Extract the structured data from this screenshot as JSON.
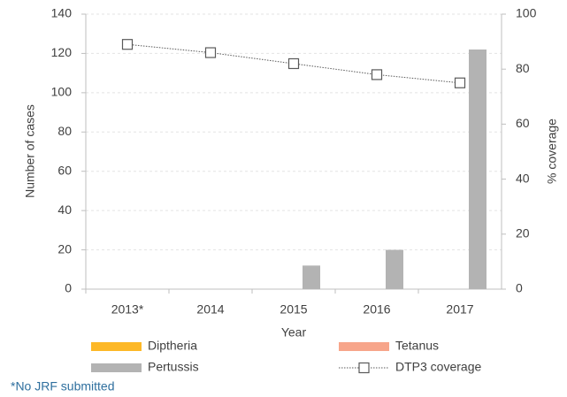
{
  "chart_data": {
    "type": "bar",
    "x_label": "Year",
    "y_label": "Number of cases",
    "y2_label": "% coverage",
    "categories": [
      "2013*",
      "2014",
      "2015",
      "2016",
      "2017"
    ],
    "series": [
      {
        "name": "Diptheria",
        "color": "#fdb827",
        "values": [
          0,
          0,
          0,
          0,
          0
        ]
      },
      {
        "name": "Tetanus",
        "color": "#f7a58a",
        "values": [
          0,
          0,
          0,
          0,
          0
        ]
      },
      {
        "name": "Pertussis",
        "color": "#b3b3b3",
        "values": [
          0,
          0,
          12,
          20,
          122
        ]
      },
      {
        "name": "DTP3 coverage",
        "type": "line",
        "axis": "y2",
        "color": "#595959",
        "values": [
          89,
          86,
          82,
          78,
          75
        ]
      }
    ],
    "ylim": [
      0,
      140
    ],
    "yticks": [
      0,
      20,
      40,
      60,
      80,
      100,
      120,
      140
    ],
    "y2lim": [
      0,
      100
    ],
    "y2ticks": [
      0,
      20,
      40,
      60,
      80,
      100
    ],
    "grid": true,
    "legend": "bottom",
    "note": "*No JRF submitted"
  }
}
